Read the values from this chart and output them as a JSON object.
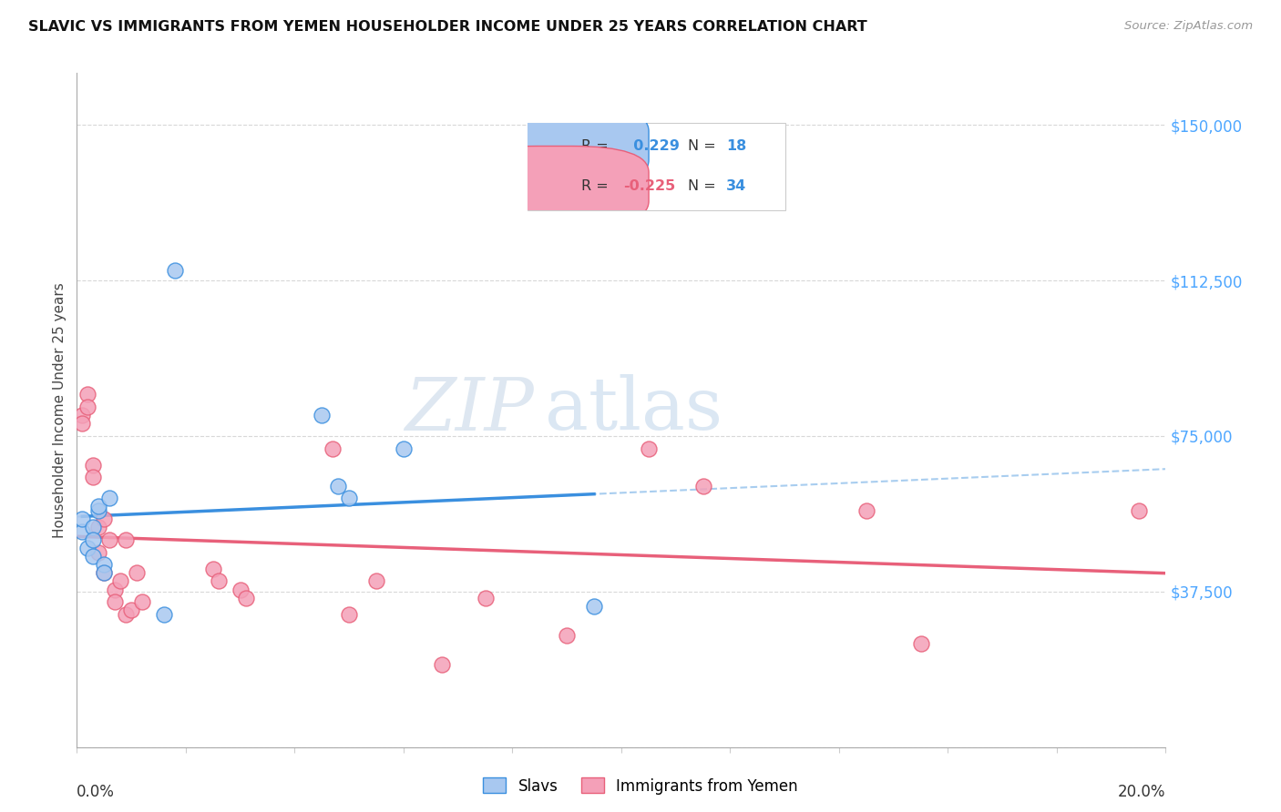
{
  "title": "SLAVIC VS IMMIGRANTS FROM YEMEN HOUSEHOLDER INCOME UNDER 25 YEARS CORRELATION CHART",
  "source": "Source: ZipAtlas.com",
  "ylabel": "Householder Income Under 25 years",
  "xlim": [
    0.0,
    0.2
  ],
  "ylim": [
    0,
    162500
  ],
  "yticks": [
    0,
    37500,
    75000,
    112500,
    150000
  ],
  "ytick_labels": [
    "",
    "$37,500",
    "$75,000",
    "$112,500",
    "$150,000"
  ],
  "xticks": [
    0.0,
    0.02,
    0.04,
    0.06,
    0.08,
    0.1,
    0.12,
    0.14,
    0.16,
    0.18,
    0.2
  ],
  "slavs_R": 0.229,
  "slavs_N": 18,
  "yemen_R": -0.225,
  "yemen_N": 34,
  "slavs_color": "#a8c8f0",
  "slavs_line_color": "#3a8fdf",
  "slavs_edge_color": "#3a8fdf",
  "yemen_color": "#f4a0b8",
  "yemen_line_color": "#e8607a",
  "yemen_edge_color": "#e8607a",
  "dashed_color": "#9fc8ee",
  "ytick_color": "#4da6ff",
  "watermark_zip": "ZIP",
  "watermark_atlas": "atlas",
  "slavs_x": [
    0.001,
    0.001,
    0.002,
    0.003,
    0.003,
    0.003,
    0.004,
    0.004,
    0.005,
    0.005,
    0.006,
    0.016,
    0.018,
    0.045,
    0.048,
    0.05,
    0.06,
    0.095
  ],
  "slavs_y": [
    52000,
    55000,
    48000,
    53000,
    50000,
    46000,
    57000,
    58000,
    44000,
    42000,
    60000,
    32000,
    115000,
    80000,
    63000,
    60000,
    72000,
    34000
  ],
  "yemen_x": [
    0.001,
    0.001,
    0.002,
    0.002,
    0.003,
    0.003,
    0.004,
    0.004,
    0.005,
    0.005,
    0.006,
    0.007,
    0.007,
    0.008,
    0.009,
    0.009,
    0.01,
    0.011,
    0.012,
    0.025,
    0.026,
    0.03,
    0.031,
    0.047,
    0.05,
    0.055,
    0.067,
    0.075,
    0.09,
    0.105,
    0.115,
    0.145,
    0.155,
    0.195
  ],
  "yemen_y": [
    80000,
    78000,
    85000,
    82000,
    68000,
    65000,
    53000,
    47000,
    55000,
    42000,
    50000,
    38000,
    35000,
    40000,
    32000,
    50000,
    33000,
    42000,
    35000,
    43000,
    40000,
    38000,
    36000,
    72000,
    32000,
    40000,
    20000,
    36000,
    27000,
    72000,
    63000,
    57000,
    25000,
    57000
  ]
}
